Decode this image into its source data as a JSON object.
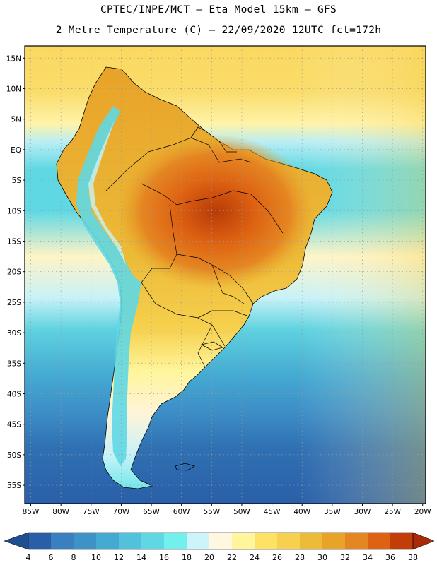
{
  "header": {
    "line1": "CPTEC/INPE/MCT –  Eta Model 15km – GFS",
    "line2": "2 Metre Temperature (C) – 22/09/2020 12UTC fct=172h"
  },
  "axes": {
    "lat_labels": [
      "15N",
      "10N",
      "5N",
      "EQ",
      "5S",
      "10S",
      "15S",
      "20S",
      "25S",
      "30S",
      "35S",
      "40S",
      "45S",
      "50S",
      "55S"
    ],
    "lat_values": [
      15,
      10,
      5,
      0,
      -5,
      -10,
      -15,
      -20,
      -25,
      -30,
      -35,
      -40,
      -45,
      -50,
      -55
    ],
    "lon_labels": [
      "85W",
      "80W",
      "75W",
      "70W",
      "65W",
      "60W",
      "55W",
      "50W",
      "45W",
      "40W",
      "35W",
      "30W",
      "25W",
      "20W"
    ],
    "lon_values": [
      -85,
      -80,
      -75,
      -70,
      -65,
      -60,
      -55,
      -50,
      -45,
      -40,
      -35,
      -30,
      -25,
      -20
    ],
    "lat_range": [
      -58,
      17
    ],
    "lon_range": [
      -86,
      -19.5
    ]
  },
  "colorbar": {
    "labels": [
      "4",
      "6",
      "8",
      "10",
      "12",
      "14",
      "16",
      "18",
      "20",
      "22",
      "24",
      "26",
      "28",
      "30",
      "32",
      "34",
      "36",
      "38"
    ],
    "colors": [
      "#2a5fa8",
      "#3a7fc0",
      "#3d93c8",
      "#44aad2",
      "#52c2dc",
      "#5fd8e4",
      "#72f0ee",
      "#ccf4fa",
      "#fff7e0",
      "#fff59a",
      "#fde266",
      "#f6d04e",
      "#ecbb38",
      "#e8a328",
      "#e58622",
      "#dd6212",
      "#c23d07"
    ],
    "low_color": "#1f4f90",
    "high_color": "#a82a08",
    "units": "C"
  }
}
